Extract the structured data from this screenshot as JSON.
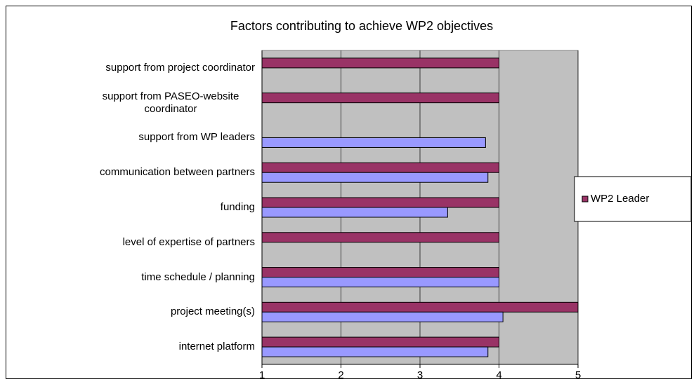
{
  "chart_data": {
    "type": "bar",
    "orientation": "horizontal",
    "title": "Factors contributing to achieve WP2 objectives",
    "categories": [
      "support from project coordinator",
      "support from PASEO-website coordinator",
      "support from WP leaders",
      "communication between partners",
      "funding",
      "level of expertise of partners",
      "time schedule / planning",
      "project meeting(s)",
      "internet platform"
    ],
    "series": [
      {
        "name": "WP2 Leader",
        "color": "#993366",
        "values": [
          4,
          4,
          null,
          4,
          4,
          4,
          4,
          5,
          4
        ]
      },
      {
        "color": "#9999ff",
        "values": [
          null,
          null,
          3.83,
          3.86,
          3.35,
          null,
          4,
          4.05,
          3.86
        ]
      }
    ],
    "xlim": [
      1,
      5
    ],
    "xticks": [
      1,
      2,
      3,
      4,
      5
    ],
    "grid": true,
    "legend": "right"
  }
}
